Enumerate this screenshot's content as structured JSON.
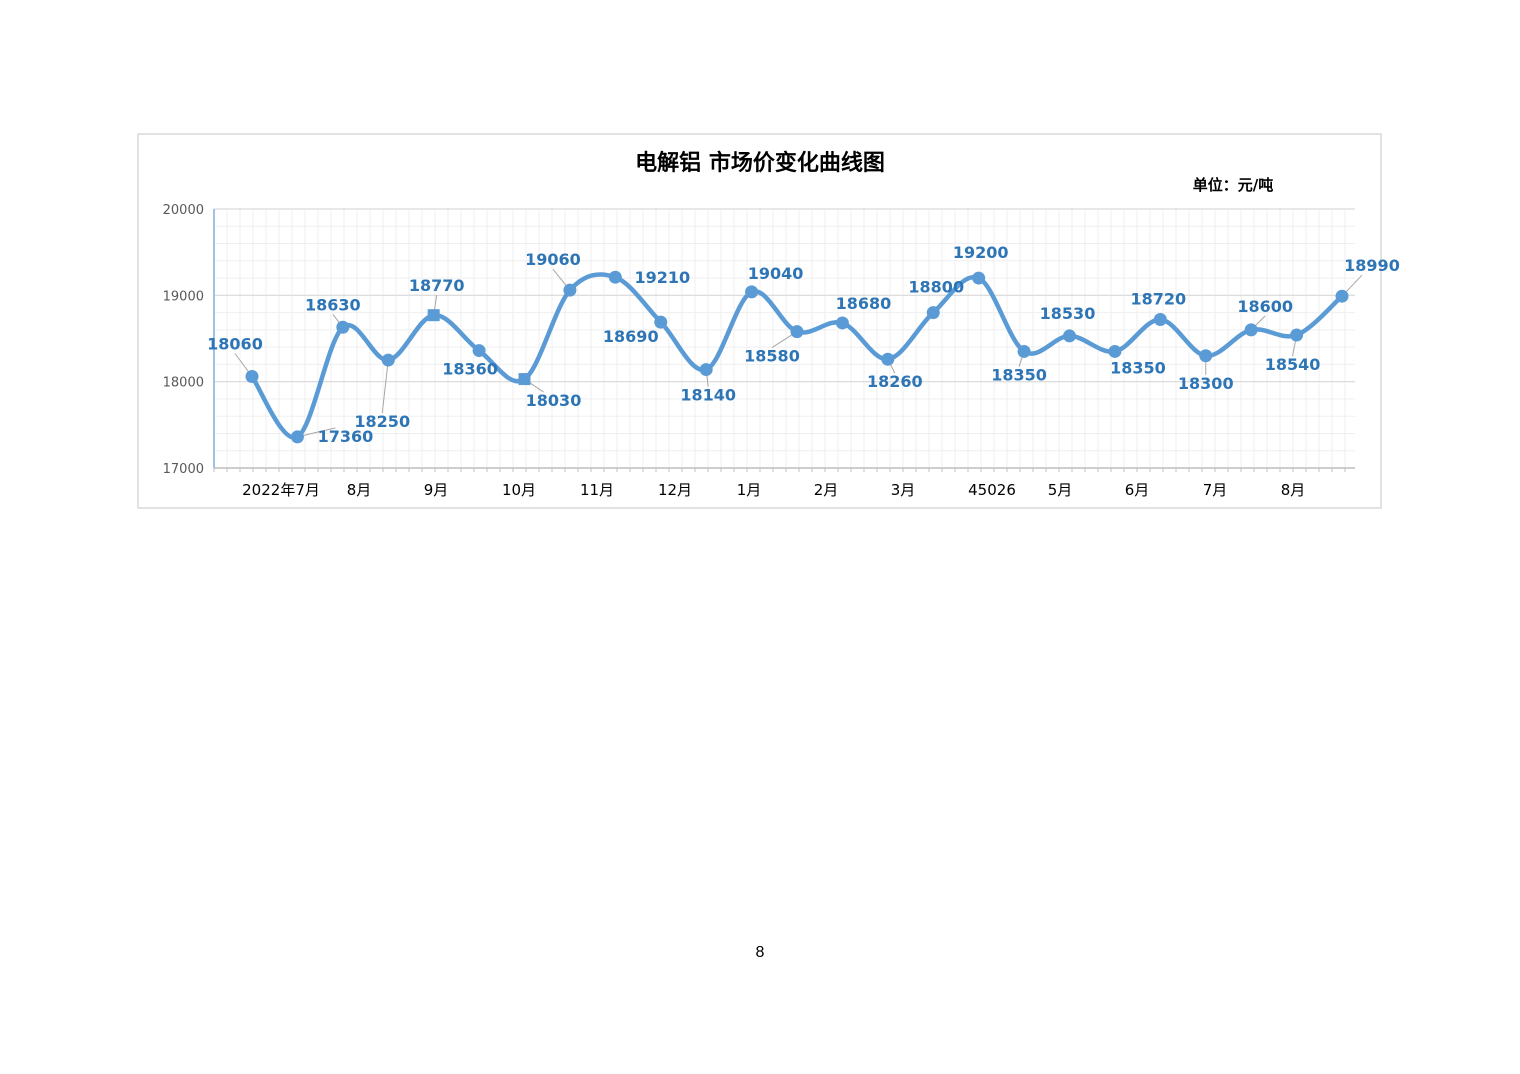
{
  "page": {
    "page_number": "8"
  },
  "chart_data": {
    "type": "line",
    "title": "电解铝 市场价变化曲线图",
    "unit_label": "单位：元/吨",
    "xlabel": "",
    "ylabel": "",
    "ylim": [
      17000,
      20000
    ],
    "yticks": [
      17000,
      18000,
      19000,
      20000
    ],
    "y_tick_labels": [
      "17000",
      "18000",
      "19000",
      "20000"
    ],
    "grid": true,
    "smooth": true,
    "colors": {
      "line": "#5b9bd5",
      "label": "#2e75b6",
      "grid": "#e3e3e3",
      "axis": "#9dc3e6",
      "frame": "#d9d9d9",
      "text": "#000000",
      "tick_text": "#595959"
    },
    "x_tick_labels": [
      "2022年7月",
      "8月",
      "9月",
      "10月",
      "11月",
      "12月",
      "1月",
      "2月",
      "3月",
      "45026",
      "5月",
      "6月",
      "7月",
      "8月"
    ],
    "series": [
      {
        "values": [
          18060,
          17360,
          18630,
          18250,
          18770,
          18360,
          18030,
          19060,
          19210,
          18690,
          18140,
          19040,
          18580,
          18680,
          18260,
          18800,
          19200,
          18350,
          18530,
          18350,
          18720,
          18300,
          18600,
          18540,
          18990
        ],
        "labels": [
          "18060",
          "17360",
          "18630",
          "18250",
          "18770",
          "18360",
          "18030",
          "19060",
          "19210",
          "18690",
          "18140",
          "19040",
          "18580",
          "18680",
          "18260",
          "18800",
          "19200",
          "18350",
          "18530",
          "18350",
          "18720",
          "18300",
          "18600",
          "18540",
          "18990"
        ]
      }
    ]
  }
}
